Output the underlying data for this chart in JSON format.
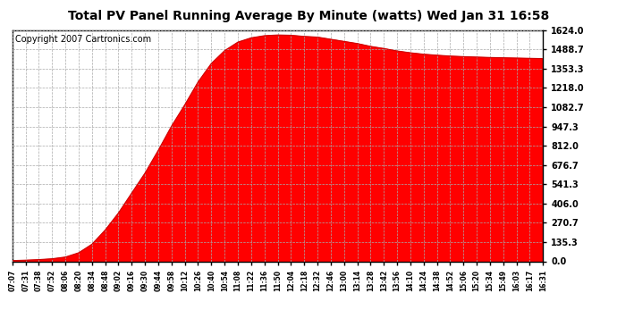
{
  "title": "Total PV Panel Running Average By Minute (watts) Wed Jan 31 16:58",
  "copyright": "Copyright 2007 Cartronics.com",
  "y_ticks": [
    0.0,
    135.3,
    270.7,
    406.0,
    541.3,
    676.7,
    812.0,
    947.3,
    1082.7,
    1218.0,
    1353.3,
    1488.7,
    1624.0
  ],
  "ymax": 1624.0,
  "ymin": 0.0,
  "fill_color": "#ff0000",
  "line_color": "#cc0000",
  "background_color": "#ffffff",
  "grid_color": "#aaaaaa",
  "title_fontsize": 10,
  "copyright_fontsize": 7,
  "x_labels": [
    "07:07",
    "07:31",
    "07:38",
    "07:52",
    "08:06",
    "08:20",
    "08:34",
    "08:48",
    "09:02",
    "09:16",
    "09:30",
    "09:44",
    "09:58",
    "10:12",
    "10:26",
    "10:40",
    "10:54",
    "11:08",
    "11:22",
    "11:36",
    "11:50",
    "12:04",
    "12:18",
    "12:32",
    "12:46",
    "13:00",
    "13:14",
    "13:28",
    "13:42",
    "13:56",
    "14:10",
    "14:24",
    "14:38",
    "14:52",
    "15:06",
    "15:20",
    "15:34",
    "15:49",
    "16:03",
    "16:17",
    "16:31"
  ],
  "y_values": [
    5,
    8,
    12,
    18,
    30,
    60,
    120,
    220,
    340,
    480,
    620,
    780,
    950,
    1100,
    1260,
    1390,
    1480,
    1540,
    1570,
    1585,
    1590,
    1588,
    1580,
    1575,
    1560,
    1545,
    1530,
    1510,
    1495,
    1478,
    1465,
    1455,
    1448,
    1442,
    1438,
    1435,
    1432,
    1430,
    1428,
    1426,
    1424
  ]
}
